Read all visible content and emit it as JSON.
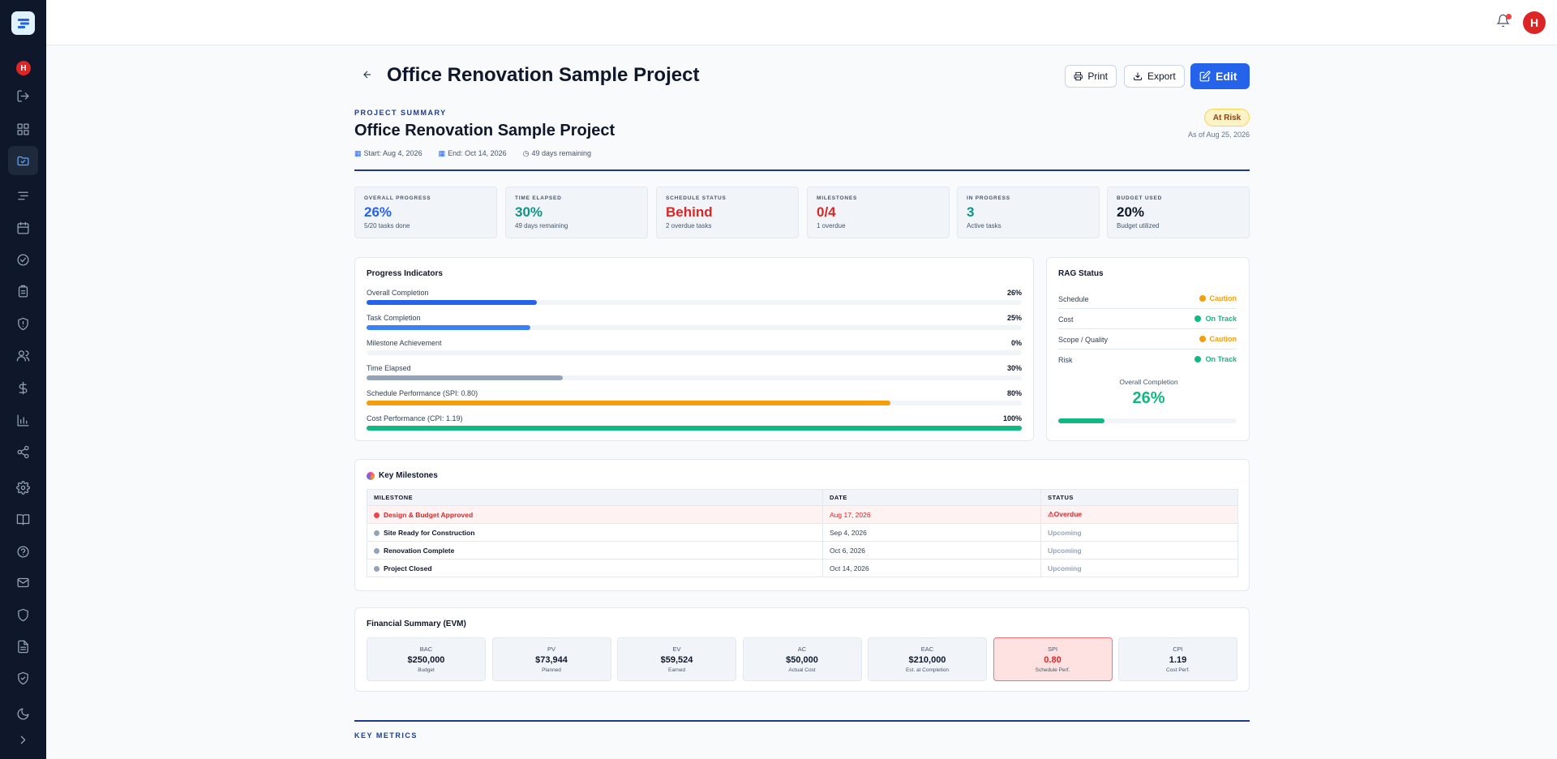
{
  "sidebar": {
    "avatar_initial": "H",
    "items": [
      "logout-icon",
      "dashboard-icon",
      "folder-icon",
      "list-icon",
      "calendar-icon",
      "check-circle-icon",
      "clipboard-icon",
      "shield-icon",
      "users-icon",
      "dollar-icon",
      "bar-chart-icon",
      "share-icon",
      "gear-icon",
      "book-icon",
      "help-icon",
      "mail-icon",
      "shield-icon",
      "shield-check-icon",
      "moon-icon",
      "chevron-right-icon"
    ]
  },
  "topbar": {
    "avatar_initial": "H"
  },
  "header": {
    "title": "Office Renovation Sample Project",
    "print_label": "Print",
    "export_label": "Export",
    "edit_label": "Edit"
  },
  "summary": {
    "label": "PROJECT SUMMARY",
    "title": "Office Renovation Sample Project",
    "start": "Start: Aug 4, 2026",
    "end": "End: Oct 14, 2026",
    "remaining": "49 days remaining",
    "status_badge": "At Risk",
    "as_of": "As of Aug 25, 2026"
  },
  "kpis": [
    {
      "label": "OVERALL PROGRESS",
      "value": "26%",
      "sub": "5/20 tasks done",
      "color": "#2563eb"
    },
    {
      "label": "TIME ELAPSED",
      "value": "30%",
      "sub": "49 days remaining",
      "color": "#0d9488"
    },
    {
      "label": "SCHEDULE STATUS",
      "value": "Behind",
      "sub": "2 overdue tasks",
      "color": "#dc2626"
    },
    {
      "label": "MILESTONES",
      "value": "0/4",
      "sub": "1 overdue",
      "color": "#dc2626"
    },
    {
      "label": "IN PROGRESS",
      "value": "3",
      "sub": "Active tasks",
      "color": "#0d9488"
    },
    {
      "label": "BUDGET USED",
      "value": "20%",
      "sub": "Budget utilized",
      "color": "#0f172a"
    }
  ],
  "progress": {
    "title": "Progress Indicators",
    "rows": [
      {
        "label": "Overall Completion",
        "value": "26%",
        "fraction": 0.26,
        "color": "#2563eb"
      },
      {
        "label": "Task Completion",
        "value": "25%",
        "fraction": 0.25,
        "color": "#3b82f6"
      },
      {
        "label": "Milestone Achievement",
        "value": "0%",
        "fraction": 0,
        "color": "#2563eb"
      },
      {
        "label": "Time Elapsed",
        "value": "30%",
        "fraction": 0.3,
        "color": "#94a3b8"
      },
      {
        "label": "Schedule Performance (SPI: 0.80)",
        "value": "80%",
        "fraction": 0.8,
        "color": "#f59e0b"
      },
      {
        "label": "Cost Performance (CPI: 1.19)",
        "value": "100%",
        "fraction": 1.0,
        "color": "#10b981"
      }
    ]
  },
  "rag": {
    "title": "RAG Status",
    "rows": [
      {
        "label": "Schedule",
        "status": "Caution",
        "color": "#f59e0b"
      },
      {
        "label": "Cost",
        "status": "On Track",
        "color": "#10b981"
      },
      {
        "label": "Scope / Quality",
        "status": "Caution",
        "color": "#f59e0b"
      },
      {
        "label": "Risk",
        "status": "On Track",
        "color": "#10b981"
      }
    ],
    "completion_label": "Overall Completion",
    "completion_value": "26%",
    "completion_fraction": 0.26
  },
  "milestones": {
    "title": "Key Milestones",
    "headers": [
      "MILESTONE",
      "DATE",
      "STATUS"
    ],
    "rows": [
      {
        "name": "Design & Budget Approved",
        "date": "Aug 17, 2026",
        "status": "Overdue",
        "overdue": true
      },
      {
        "name": "Site Ready for Construction",
        "date": "Sep 4, 2026",
        "status": "Upcoming",
        "overdue": false
      },
      {
        "name": "Renovation Complete",
        "date": "Oct 6, 2026",
        "status": "Upcoming",
        "overdue": false
      },
      {
        "name": "Project Closed",
        "date": "Oct 14, 2026",
        "status": "Upcoming",
        "overdue": false
      }
    ]
  },
  "financial": {
    "title": "Financial Summary (EVM)",
    "cards": [
      {
        "label": "BAC",
        "value": "$250,000",
        "sub": "Budget"
      },
      {
        "label": "PV",
        "value": "$73,944",
        "sub": "Planned"
      },
      {
        "label": "EV",
        "value": "$59,524",
        "sub": "Earned"
      },
      {
        "label": "AC",
        "value": "$50,000",
        "sub": "Actual Cost"
      },
      {
        "label": "EAC",
        "value": "$210,000",
        "sub": "Est. at Completion"
      },
      {
        "label": "SPI",
        "value": "0.80",
        "sub": "Schedule Perf."
      },
      {
        "label": "CPI",
        "value": "1.19",
        "sub": "Cost Perf."
      }
    ]
  },
  "key_metrics_label": "KEY METRICS"
}
